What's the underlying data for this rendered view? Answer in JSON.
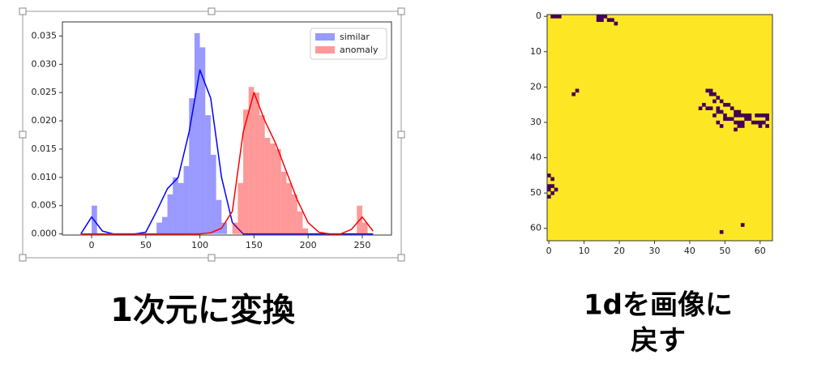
{
  "chart_data": [
    {
      "type": "histogram",
      "bins": [
        0,
        5,
        10,
        15,
        20,
        25,
        30,
        35,
        40,
        45,
        50,
        55,
        60,
        65,
        70,
        75,
        80,
        85,
        90,
        95,
        100,
        105,
        110,
        115,
        120,
        125,
        130,
        135,
        140,
        145,
        150,
        155,
        160,
        165,
        170,
        175,
        180,
        185,
        190,
        195,
        200,
        205,
        210,
        215,
        220,
        225,
        230,
        235,
        240,
        245,
        250,
        255,
        260
      ],
      "series": [
        {
          "name": "similar",
          "color": "#0000ff",
          "values": [
            0.005,
            0,
            0,
            0,
            0,
            0,
            0,
            0,
            0,
            0,
            0,
            0,
            0.002,
            0.003,
            0.007,
            0.01,
            0.009,
            0.012,
            0.024,
            0.0355,
            0.033,
            0.021,
            0.014,
            0.006,
            0.002,
            0,
            0,
            0,
            0,
            0,
            0,
            0,
            0,
            0,
            0,
            0,
            0,
            0,
            0,
            0,
            0,
            0,
            0,
            0,
            0,
            0,
            0,
            0,
            0,
            0,
            0,
            0
          ],
          "kde": [
            0,
            0.003,
            0.0005,
            0,
            0,
            0,
            0.0003,
            0.004,
            0.008,
            0.01,
            0.018,
            0.029,
            0.024,
            0.01,
            0.002,
            0,
            0,
            0,
            0,
            0,
            0,
            0,
            0,
            0,
            0,
            0,
            0,
            0
          ]
        },
        {
          "name": "anomaly",
          "color": "#ff0000",
          "values": [
            0,
            0,
            0,
            0,
            0,
            0,
            0,
            0,
            0,
            0,
            0,
            0,
            0,
            0,
            0,
            0,
            0,
            0,
            0,
            0,
            0,
            0,
            0,
            0,
            0,
            0,
            0.002,
            0.009,
            0.022,
            0.026,
            0.025,
            0.021,
            0.017,
            0.016,
            0.015,
            0.011,
            0.009,
            0.007,
            0.004,
            0.001,
            0,
            0,
            0,
            0,
            0,
            0,
            0,
            0,
            0,
            0.005,
            0.002,
            0
          ],
          "kde": [
            0,
            0,
            0,
            0,
            0,
            0,
            0,
            0,
            0,
            0,
            0,
            0,
            0.0002,
            0.001,
            0.004,
            0.018,
            0.025,
            0.02,
            0.016,
            0.011,
            0.006,
            0.002,
            0.0003,
            0,
            0,
            0.0008,
            0.003,
            0.0005
          ]
        }
      ],
      "kde_x": [
        -10,
        0,
        10,
        20,
        30,
        40,
        50,
        60,
        70,
        80,
        90,
        100,
        110,
        120,
        130,
        140,
        150,
        160,
        170,
        180,
        190,
        200,
        210,
        220,
        230,
        240,
        250,
        260
      ],
      "xlim": [
        -27,
        277
      ],
      "ylim": [
        -0.0002,
        0.0375
      ],
      "xticks": [
        0,
        50,
        100,
        150,
        200,
        250
      ],
      "yticks": [
        {
          "value": 0,
          "label": "0.000"
        },
        {
          "value": 0.005,
          "label": "0.005"
        },
        {
          "value": 0.01,
          "label": "0.010"
        },
        {
          "value": 0.015,
          "label": "0.015"
        },
        {
          "value": 0.02,
          "label": "0.020"
        },
        {
          "value": 0.025,
          "label": "0.025"
        },
        {
          "value": 0.03,
          "label": "0.030"
        },
        {
          "value": 0.035,
          "label": "0.035"
        }
      ],
      "legend": "upper right"
    },
    {
      "type": "heatmap",
      "fill_value": 1,
      "cell_value": 0,
      "colors": [
        "#440154",
        "#fde725"
      ],
      "cells": [
        [
          1,
          0
        ],
        [
          2,
          0
        ],
        [
          3,
          0
        ],
        [
          14,
          0
        ],
        [
          15,
          0
        ],
        [
          16,
          0
        ],
        [
          14,
          1
        ],
        [
          15,
          1
        ],
        [
          17,
          1
        ],
        [
          18,
          1
        ],
        [
          19,
          2
        ],
        [
          8,
          21
        ],
        [
          7,
          22
        ],
        [
          45,
          21
        ],
        [
          46,
          21
        ],
        [
          46,
          22
        ],
        [
          47,
          22
        ],
        [
          48,
          23
        ],
        [
          47,
          24
        ],
        [
          49,
          24
        ],
        [
          50,
          25
        ],
        [
          51,
          25
        ],
        [
          44,
          25
        ],
        [
          43,
          26
        ],
        [
          45,
          26
        ],
        [
          46,
          26
        ],
        [
          48,
          26
        ],
        [
          52,
          26
        ],
        [
          53,
          27
        ],
        [
          54,
          27
        ],
        [
          48,
          27
        ],
        [
          49,
          27
        ],
        [
          55,
          28
        ],
        [
          56,
          28
        ],
        [
          57,
          28
        ],
        [
          59,
          28
        ],
        [
          60,
          28
        ],
        [
          61,
          28
        ],
        [
          62,
          28
        ],
        [
          47,
          28
        ],
        [
          50,
          28
        ],
        [
          53,
          28
        ],
        [
          54,
          28
        ],
        [
          50,
          29
        ],
        [
          51,
          29
        ],
        [
          52,
          29
        ],
        [
          56,
          29
        ],
        [
          57,
          29
        ],
        [
          62,
          29
        ],
        [
          48,
          30
        ],
        [
          53,
          30
        ],
        [
          54,
          30
        ],
        [
          55,
          30
        ],
        [
          58,
          30
        ],
        [
          59,
          30
        ],
        [
          60,
          30
        ],
        [
          61,
          30
        ],
        [
          49,
          31
        ],
        [
          54,
          31
        ],
        [
          55,
          31
        ],
        [
          60,
          31
        ],
        [
          62,
          31
        ],
        [
          53,
          32
        ],
        [
          0,
          45
        ],
        [
          1,
          46
        ],
        [
          0,
          48
        ],
        [
          1,
          48
        ],
        [
          0,
          49
        ],
        [
          2,
          49
        ],
        [
          1,
          50
        ],
        [
          0,
          51
        ],
        [
          55,
          59
        ],
        [
          49,
          61
        ]
      ],
      "xlim": [
        -0.5,
        63.5
      ],
      "ylim": [
        63.5,
        -0.5
      ],
      "xticks": [
        0,
        10,
        20,
        30,
        40,
        50,
        60
      ],
      "yticks": [
        0,
        10,
        20,
        30,
        40,
        50,
        60
      ]
    }
  ],
  "captions": {
    "left": "1次元に変換",
    "right": [
      "1dを画像に",
      "戻す"
    ]
  }
}
